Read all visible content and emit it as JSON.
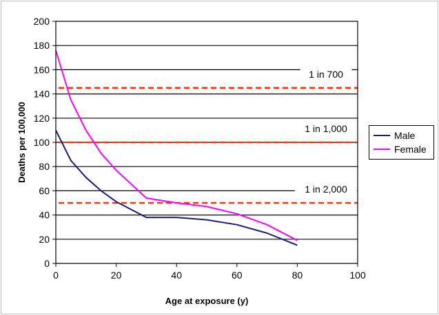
{
  "chart_data": {
    "type": "line",
    "title": "",
    "xlabel": "Age at exposure (y)",
    "ylabel": "Deaths per 100,000",
    "xlim": [
      0,
      100
    ],
    "ylim": [
      0,
      200
    ],
    "x_ticks": [
      0,
      20,
      40,
      60,
      80,
      100
    ],
    "y_ticks": [
      0,
      20,
      40,
      60,
      80,
      100,
      120,
      140,
      160,
      180,
      200
    ],
    "grid": "horizontal",
    "legend_position": "right",
    "series": [
      {
        "name": "Male",
        "color": "#1a1a7e",
        "x": [
          0,
          5,
          10,
          15,
          20,
          30,
          40,
          50,
          60,
          70,
          80
        ],
        "y": [
          110,
          85,
          71,
          60,
          51,
          38,
          38,
          36,
          32,
          25,
          15
        ]
      },
      {
        "name": "Female",
        "color": "#ff00ff",
        "x": [
          0,
          5,
          10,
          15,
          20,
          30,
          40,
          50,
          60,
          70,
          80
        ],
        "y": [
          176,
          135,
          110,
          91,
          77,
          54,
          50,
          47,
          41,
          32,
          19
        ]
      }
    ],
    "reference_lines": [
      {
        "y": 145,
        "label": "1 in 700",
        "color": "#ff3300"
      },
      {
        "y": 100,
        "label": "1 in 1,000",
        "color": "#ff3300"
      },
      {
        "y": 50,
        "label": "1 in 2,000",
        "color": "#ff3300"
      }
    ]
  }
}
